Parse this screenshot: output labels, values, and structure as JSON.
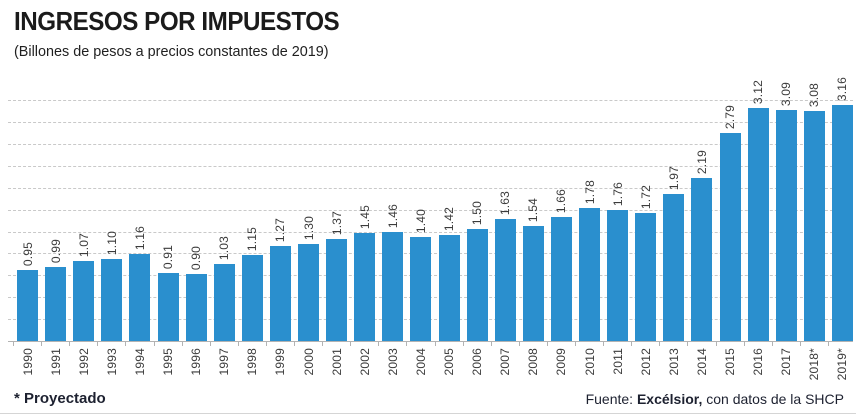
{
  "header": {
    "title": "INGRESOS POR IMPUESTOS",
    "subtitle": "(Billones de pesos a precios constantes de 2019)"
  },
  "chart_data": {
    "type": "bar",
    "title": "INGRESOS POR IMPUESTOS",
    "subtitle": "(Billones de pesos a precios constantes de 2019)",
    "categories": [
      "1990",
      "1991",
      "1992",
      "1993",
      "1994",
      "1995",
      "1996",
      "1997",
      "1998",
      "1999",
      "2000",
      "2001",
      "2002",
      "2003",
      "2004",
      "2005",
      "2006",
      "2007",
      "2008",
      "2009",
      "2010",
      "2011",
      "2012",
      "2013",
      "2014",
      "2015",
      "2016",
      "2017",
      "2018*",
      "2019*"
    ],
    "values": [
      0.95,
      0.99,
      1.07,
      1.1,
      1.16,
      0.91,
      0.9,
      1.03,
      1.15,
      1.27,
      1.3,
      1.37,
      1.45,
      1.46,
      1.4,
      1.42,
      1.5,
      1.63,
      1.54,
      1.66,
      1.78,
      1.76,
      1.72,
      1.97,
      2.19,
      2.79,
      3.12,
      3.09,
      3.08,
      3.16
    ],
    "xlabel": "",
    "ylabel": "",
    "ylim": [
      0,
      3.4
    ],
    "grid": "horizontal-dashed",
    "legend": "none",
    "bar_color": "#2a8fce",
    "value_label_style": "rotated-90-above-bar",
    "category_label_style": "rotated-90-below-axis"
  },
  "footer": {
    "footnote": "* Proyectado",
    "source_prefix": "Fuente: ",
    "source_bold": "Excélsior,",
    "source_suffix": " con datos de la SHCP"
  }
}
